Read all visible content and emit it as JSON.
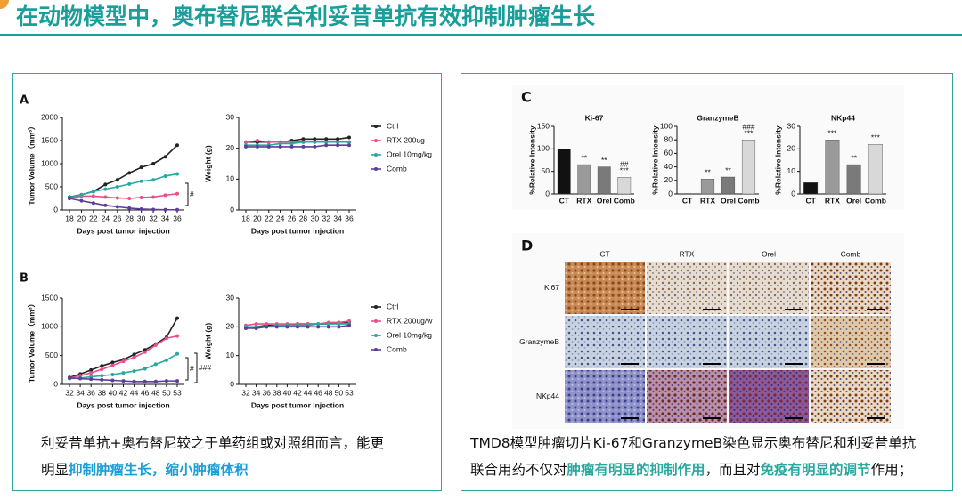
{
  "title": "在动物模型中，奥布替尼联合利妥昔单抗有效抑制肿瘤生长",
  "panels": [
    "A",
    "B",
    "C",
    "D"
  ],
  "image_grid": {
    "columns": [
      "CT",
      "RTX",
      "Orel",
      "Comb"
    ],
    "rows": [
      "Ki67",
      "GranzymeB",
      "NKp44"
    ]
  },
  "captions": [
    {
      "lines": [
        [
          {
            "text": "利妥昔单抗+奥布替尼较之于单药组或对照组而言，能更",
            "highlight": false
          }
        ],
        [
          {
            "text": "明显",
            "highlight": false
          },
          {
            "text": "抑制肿瘤生长，缩小肿瘤体积",
            "highlight": true
          }
        ]
      ]
    },
    {
      "lines": [
        [
          {
            "text": "TMD8模型肿瘤切片Ki-67和GranzymeB染色显示奥布替尼和利妥昔单抗",
            "highlight": false
          }
        ],
        [
          {
            "text": "联合用药不仅对",
            "highlight": false
          },
          {
            "text": "肿瘤有明显的抑制作用",
            "highlight": true
          },
          {
            "text": "，而且对",
            "highlight": false
          },
          {
            "text": "免疫有明显的调节",
            "highlight": true
          },
          {
            "text": "作用；",
            "highlight": false
          }
        ]
      ]
    }
  ],
  "chart_data": [
    {
      "type": "line",
      "y_label": "Tumor Volume（mm³）",
      "x_label": "Days post tumor injection",
      "categories": [
        "18",
        "20",
        "22",
        "24",
        "26",
        "28",
        "30",
        "32",
        "34",
        "36"
      ],
      "ylim": [
        0,
        2000
      ],
      "yticks": [
        0,
        500,
        1000,
        1500,
        2000
      ],
      "annotations": [
        "#"
      ],
      "series": [
        {
          "color": "#222222",
          "values": [
            280,
            330,
            400,
            550,
            650,
            800,
            920,
            1000,
            1150,
            1400
          ]
        },
        {
          "color": "#e8508a",
          "values": [
            250,
            300,
            300,
            280,
            260,
            250,
            270,
            280,
            320,
            350
          ]
        },
        {
          "color": "#2aa8a0",
          "values": [
            270,
            330,
            400,
            450,
            500,
            560,
            620,
            650,
            730,
            780
          ]
        },
        {
          "color": "#5b3f9a",
          "values": [
            250,
            200,
            150,
            100,
            70,
            40,
            20,
            10,
            5,
            5
          ]
        }
      ]
    },
    {
      "type": "line",
      "y_label": "Weight (g)",
      "x_label": "Days post tumor injection",
      "categories": [
        "18",
        "20",
        "22",
        "24",
        "26",
        "28",
        "30",
        "32",
        "34",
        "36"
      ],
      "ylim": [
        0,
        30
      ],
      "yticks": [
        0,
        10,
        20,
        30
      ],
      "legend": "right",
      "series": [
        {
          "name": "Ctrl",
          "color": "#222222",
          "values": [
            22,
            22,
            22,
            22,
            22.5,
            23,
            23,
            23,
            23,
            23.5
          ]
        },
        {
          "name": "RTX 200ug",
          "color": "#e8508a",
          "values": [
            22,
            22.5,
            22,
            22,
            22,
            22,
            22,
            22,
            22,
            22
          ]
        },
        {
          "name": "Orel 10mg/kg",
          "color": "#2aa8a0",
          "values": [
            21,
            21,
            21,
            21.5,
            21.5,
            22,
            22,
            22,
            22,
            22
          ]
        },
        {
          "name": "Comb",
          "color": "#5b3f9a",
          "values": [
            20.5,
            20.5,
            20.5,
            20.5,
            20.5,
            20.5,
            20.5,
            21,
            21,
            21
          ]
        }
      ]
    },
    {
      "type": "line",
      "y_label": "Tumor Volume（mm³）",
      "x_label": "Days post tumor injection",
      "categories": [
        "32",
        "34",
        "36",
        "38",
        "40",
        "42",
        "44",
        "46",
        "48",
        "50",
        "53"
      ],
      "ylim": [
        0,
        1500
      ],
      "yticks": [
        0,
        500,
        1000,
        1500
      ],
      "annotations": [
        "#",
        "###"
      ],
      "series": [
        {
          "color": "#222222",
          "values": [
            120,
            180,
            250,
            320,
            380,
            430,
            520,
            600,
            700,
            820,
            1150
          ]
        },
        {
          "color": "#e8508a",
          "values": [
            110,
            150,
            200,
            260,
            330,
            400,
            470,
            560,
            680,
            800,
            840
          ]
        },
        {
          "color": "#2aa8a0",
          "values": [
            100,
            110,
            130,
            150,
            170,
            200,
            230,
            270,
            350,
            420,
            530
          ]
        },
        {
          "color": "#5b3f9a",
          "values": [
            110,
            100,
            90,
            80,
            70,
            60,
            50,
            50,
            50,
            60,
            60
          ]
        }
      ]
    },
    {
      "type": "line",
      "y_label": "Weight (g)",
      "x_label": "Days post tumor injection",
      "categories": [
        "32",
        "34",
        "36",
        "38",
        "40",
        "42",
        "44",
        "46",
        "48",
        "50",
        "53"
      ],
      "ylim": [
        0,
        30
      ],
      "yticks": [
        0,
        10,
        20,
        30
      ],
      "legend": "right",
      "series": [
        {
          "name": "Ctrl",
          "color": "#222222",
          "values": [
            20,
            20,
            20.5,
            20.5,
            20.5,
            21,
            21,
            21,
            21,
            21.5,
            21.5
          ]
        },
        {
          "name": "RTX 200ug/w",
          "color": "#e8508a",
          "values": [
            20.5,
            21,
            21,
            21,
            21,
            21,
            21,
            21,
            21.5,
            21.5,
            22
          ]
        },
        {
          "name": "Orel 10mg/kg",
          "color": "#2aa8a0",
          "values": [
            20,
            20,
            20,
            20.5,
            20.5,
            20.5,
            20.5,
            21,
            21,
            21,
            21
          ]
        },
        {
          "name": "Comb",
          "color": "#5b3f9a",
          "values": [
            19.5,
            19.5,
            20,
            20,
            20,
            20,
            20,
            20,
            20,
            20,
            20.5
          ]
        }
      ]
    },
    {
      "type": "bar",
      "title": "Ki-67",
      "y_label": "%Relative Intensity",
      "categories": [
        "CT",
        "RTX",
        "Orel",
        "Comb"
      ],
      "values": [
        100,
        65,
        60,
        37
      ],
      "colors": [
        "#111111",
        "#9a9a9a",
        "#7a7a7a",
        "#d8d8d8"
      ],
      "ylim": [
        0,
        150
      ],
      "yticks": [
        0,
        50,
        100,
        150
      ],
      "stars": [
        null,
        "**",
        "**",
        "***"
      ],
      "hashes": [
        null,
        null,
        null,
        "##"
      ]
    },
    {
      "type": "bar",
      "title": "GranzymeB",
      "y_label": "%Relative Intensity",
      "categories": [
        "CT",
        "RTX",
        "Orel",
        "Comb"
      ],
      "values": [
        0,
        22,
        25,
        80
      ],
      "colors": [
        "#111111",
        "#9a9a9a",
        "#7a7a7a",
        "#d8d8d8"
      ],
      "ylim": [
        0,
        100
      ],
      "yticks": [
        0,
        20,
        40,
        60,
        80,
        100
      ],
      "stars": [
        null,
        "**",
        "**",
        "***"
      ],
      "hashes": [
        null,
        null,
        null,
        "###"
      ]
    },
    {
      "type": "bar",
      "title": "NKp44",
      "y_label": "%Relative Intensity",
      "categories": [
        "CT",
        "RTX",
        "Orel",
        "Comb"
      ],
      "values": [
        5,
        24,
        13,
        22
      ],
      "colors": [
        "#111111",
        "#9a9a9a",
        "#7a7a7a",
        "#d8d8d8"
      ],
      "ylim": [
        0,
        30
      ],
      "yticks": [
        0,
        10,
        20,
        30
      ],
      "stars": [
        null,
        "***",
        "**",
        "***"
      ],
      "hashes": [
        null,
        null,
        null,
        null
      ]
    }
  ]
}
